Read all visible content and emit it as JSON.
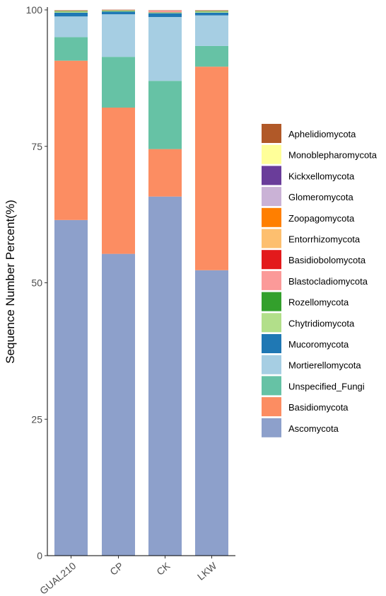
{
  "chart_data": {
    "type": "bar",
    "stacked": true,
    "title": "",
    "xlabel": "",
    "ylabel": "Sequence Number Percent(%)",
    "ylim": [
      0,
      100
    ],
    "yticks": [
      "0",
      "25",
      "50",
      "75",
      "100"
    ],
    "categories": [
      "GUAL210",
      "CP",
      "CK",
      "LKW"
    ],
    "legend_position": "right",
    "grid": false,
    "series": [
      {
        "name": "Ascomycota",
        "color": "#8DA0CB",
        "values": [
          61.5,
          55.3,
          65.8,
          52.3
        ]
      },
      {
        "name": "Basidiomycota",
        "color": "#FC8D62",
        "values": [
          29.2,
          26.8,
          8.7,
          37.3
        ]
      },
      {
        "name": "Unspecified_Fungi",
        "color": "#66C2A5",
        "values": [
          4.3,
          9.3,
          12.5,
          3.8
        ]
      },
      {
        "name": "Mortierellomycota",
        "color": "#A6CEE3",
        "values": [
          3.8,
          7.8,
          11.7,
          5.6
        ]
      },
      {
        "name": "Mucoromycota",
        "color": "#1F78B4",
        "values": [
          0.7,
          0.5,
          0.7,
          0.5
        ]
      },
      {
        "name": "Chytridiomycota",
        "color": "#B2DF8A",
        "values": [
          0.2,
          0.1,
          0.1,
          0.2
        ]
      },
      {
        "name": "Rozellomycota",
        "color": "#33A02C",
        "values": [
          0.1,
          0.1,
          0.05,
          0.1
        ]
      },
      {
        "name": "Blastocladiomycota",
        "color": "#FB9A99",
        "values": [
          0.05,
          0.05,
          0.3,
          0.05
        ]
      },
      {
        "name": "Basidiobolomycota",
        "color": "#E31A1C",
        "values": [
          0.02,
          0.02,
          0.02,
          0.02
        ]
      },
      {
        "name": "Entorrhizomycota",
        "color": "#FDBF6F",
        "values": [
          0.02,
          0.02,
          0.02,
          0.02
        ]
      },
      {
        "name": "Zoopagomycota",
        "color": "#FF7F00",
        "values": [
          0.02,
          0.02,
          0.02,
          0.02
        ]
      },
      {
        "name": "Glomeromycota",
        "color": "#CAB2D6",
        "values": [
          0.02,
          0.02,
          0.02,
          0.02
        ]
      },
      {
        "name": "Kickxellomycota",
        "color": "#6A3D9A",
        "values": [
          0.02,
          0.02,
          0.02,
          0.02
        ]
      },
      {
        "name": "Monoblepharomycota",
        "color": "#FFFF99",
        "values": [
          0.02,
          0.02,
          0.02,
          0.02
        ]
      },
      {
        "name": "Aphelidiomycota",
        "color": "#B15928",
        "values": [
          0.02,
          0.02,
          0.02,
          0.02
        ]
      }
    ]
  }
}
